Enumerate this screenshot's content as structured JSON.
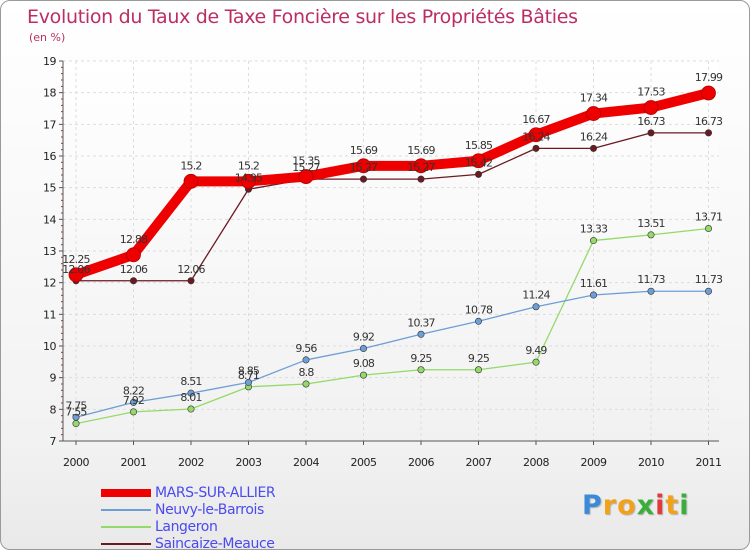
{
  "title": "Evolution du Taux de Taxe Foncière sur les Propriétés Bâties",
  "unit_label": "(en %)",
  "logo": {
    "letters": [
      "P",
      "r",
      "o",
      "x",
      "i",
      "t",
      "i"
    ],
    "colors": [
      "#3b8ad9",
      "#f2a21a",
      "#f2a21a",
      "#3aae3a",
      "#e23a3a",
      "#f2a21a",
      "#3aae3a"
    ]
  },
  "chart_data": {
    "type": "line",
    "title": "Evolution du Taux de Taxe Foncière sur les Propriétés Bâties",
    "ylabel": "(en %)",
    "xlabel": "",
    "ylim": [
      7,
      19
    ],
    "yticks": [
      "7",
      "8",
      "9",
      "10",
      "11",
      "12",
      "13",
      "14",
      "15",
      "16",
      "17",
      "18",
      "19"
    ],
    "categories": [
      "2000",
      "2001",
      "2002",
      "2003",
      "2004",
      "2005",
      "2006",
      "2007",
      "2008",
      "2009",
      "2010",
      "2011"
    ],
    "series": [
      {
        "name": "Saincaize-Meauce",
        "color": "#6b1a22",
        "values": [
          12.06,
          12.06,
          12.06,
          14.95,
          15.27,
          15.27,
          15.27,
          15.42,
          16.24,
          16.24,
          16.73,
          16.73
        ],
        "labels": [
          "12.06",
          "12.06",
          "12.06",
          "14.95",
          "15.27",
          "15.27",
          "15.27",
          "15.42",
          "16.24",
          "16.24",
          "16.73",
          "16.73"
        ]
      },
      {
        "name": "Langeron",
        "color": "#94d96a",
        "values": [
          7.55,
          7.92,
          8.01,
          8.71,
          8.8,
          9.08,
          9.25,
          9.25,
          9.49,
          13.33,
          13.51,
          13.71
        ],
        "labels": [
          "7.55",
          "7.92",
          "8.01",
          "8.71",
          "8.8",
          "9.08",
          "9.25",
          "9.25",
          "9.49",
          "13.33",
          "13.51",
          "13.71"
        ]
      },
      {
        "name": "Neuvy-le-Barrois",
        "color": "#6e9ed6",
        "values": [
          7.75,
          8.22,
          8.51,
          8.85,
          9.56,
          9.92,
          10.37,
          10.78,
          11.24,
          11.61,
          11.73,
          11.73
        ],
        "labels": [
          "7.75",
          "8.22",
          "8.51",
          "8.85",
          "9.56",
          "9.92",
          "10.37",
          "10.78",
          "11.24",
          "11.61",
          "11.73",
          "11.73"
        ]
      },
      {
        "name": "MARS-SUR-ALLIER",
        "color": "#ee0000",
        "values": [
          12.25,
          12.88,
          15.2,
          15.2,
          15.35,
          15.69,
          15.69,
          15.85,
          16.67,
          17.34,
          17.53,
          17.99
        ],
        "labels": [
          "12.25",
          "12.88",
          "15.2",
          "15.2",
          "15.35",
          "15.69",
          "15.69",
          "15.85",
          "16.67",
          "17.34",
          "17.53",
          "17.99"
        ]
      }
    ],
    "legend": [
      "MARS-SUR-ALLIER",
      "Neuvy-le-Barrois",
      "Langeron",
      "Saincaize-Meauce"
    ]
  }
}
